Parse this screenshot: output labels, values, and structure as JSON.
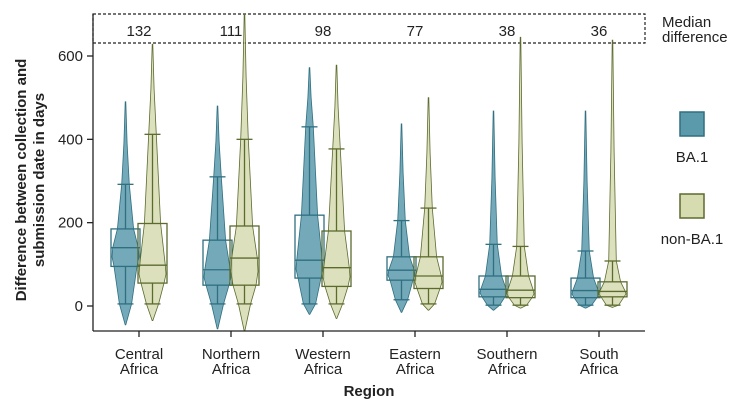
{
  "chart_data": {
    "type": "box",
    "xlabel": "Region",
    "ylabel": "Difference between collection and submission date in days",
    "ylim": [
      -80,
      700
    ],
    "yticks": [
      0,
      200,
      400,
      600
    ],
    "categories": [
      "Central Africa",
      "Northern Africa",
      "Western Africa",
      "Eastern Africa",
      "Southern Africa",
      "South Africa"
    ],
    "category_lines": [
      [
        "Central",
        "Africa"
      ],
      [
        "Northern",
        "Africa"
      ],
      [
        "Western",
        "Africa"
      ],
      [
        "Eastern",
        "Africa"
      ],
      [
        "Southern",
        "Africa"
      ],
      [
        "South",
        "Africa"
      ]
    ],
    "median_difference": {
      "label_lines": [
        "Median",
        "difference"
      ],
      "values": [
        132,
        111,
        98,
        77,
        38,
        36
      ]
    },
    "series": [
      {
        "name": "BA.1",
        "color": "#5a9aab",
        "stroke": "#2f6f80",
        "boxes": [
          {
            "whislo": 5,
            "q1": 95,
            "med": 140,
            "q3": 185,
            "whishi": 292,
            "min": -45,
            "max": 490
          },
          {
            "whislo": 5,
            "q1": 50,
            "med": 87,
            "q3": 158,
            "whishi": 310,
            "min": -55,
            "max": 480
          },
          {
            "whislo": 5,
            "q1": 67,
            "med": 110,
            "q3": 218,
            "whishi": 430,
            "min": -20,
            "max": 572
          },
          {
            "whislo": 15,
            "q1": 62,
            "med": 86,
            "q3": 118,
            "whishi": 205,
            "min": -15,
            "max": 437
          },
          {
            "whislo": 2,
            "q1": 22,
            "med": 40,
            "q3": 72,
            "whishi": 148,
            "min": -10,
            "max": 468
          },
          {
            "whislo": 2,
            "q1": 20,
            "med": 37,
            "q3": 67,
            "whishi": 132,
            "min": -5,
            "max": 468
          }
        ]
      },
      {
        "name": "non-BA.1",
        "color": "#d6dbb0",
        "stroke": "#5b6b2e",
        "boxes": [
          {
            "whislo": 5,
            "q1": 55,
            "med": 98,
            "q3": 198,
            "whishi": 412,
            "min": -35,
            "max": 628
          },
          {
            "whislo": 5,
            "q1": 50,
            "med": 115,
            "q3": 192,
            "whishi": 400,
            "min": -60,
            "max": 700
          },
          {
            "whislo": 5,
            "q1": 47,
            "med": 92,
            "q3": 180,
            "whishi": 377,
            "min": -30,
            "max": 578
          },
          {
            "whislo": 5,
            "q1": 42,
            "med": 72,
            "q3": 118,
            "whishi": 235,
            "min": -10,
            "max": 500
          },
          {
            "whislo": 2,
            "q1": 20,
            "med": 38,
            "q3": 72,
            "whishi": 143,
            "min": -5,
            "max": 645
          },
          {
            "whislo": 2,
            "q1": 22,
            "med": 35,
            "q3": 58,
            "whishi": 108,
            "min": -3,
            "max": 638
          }
        ]
      }
    ],
    "legend": {
      "position": "right"
    }
  }
}
